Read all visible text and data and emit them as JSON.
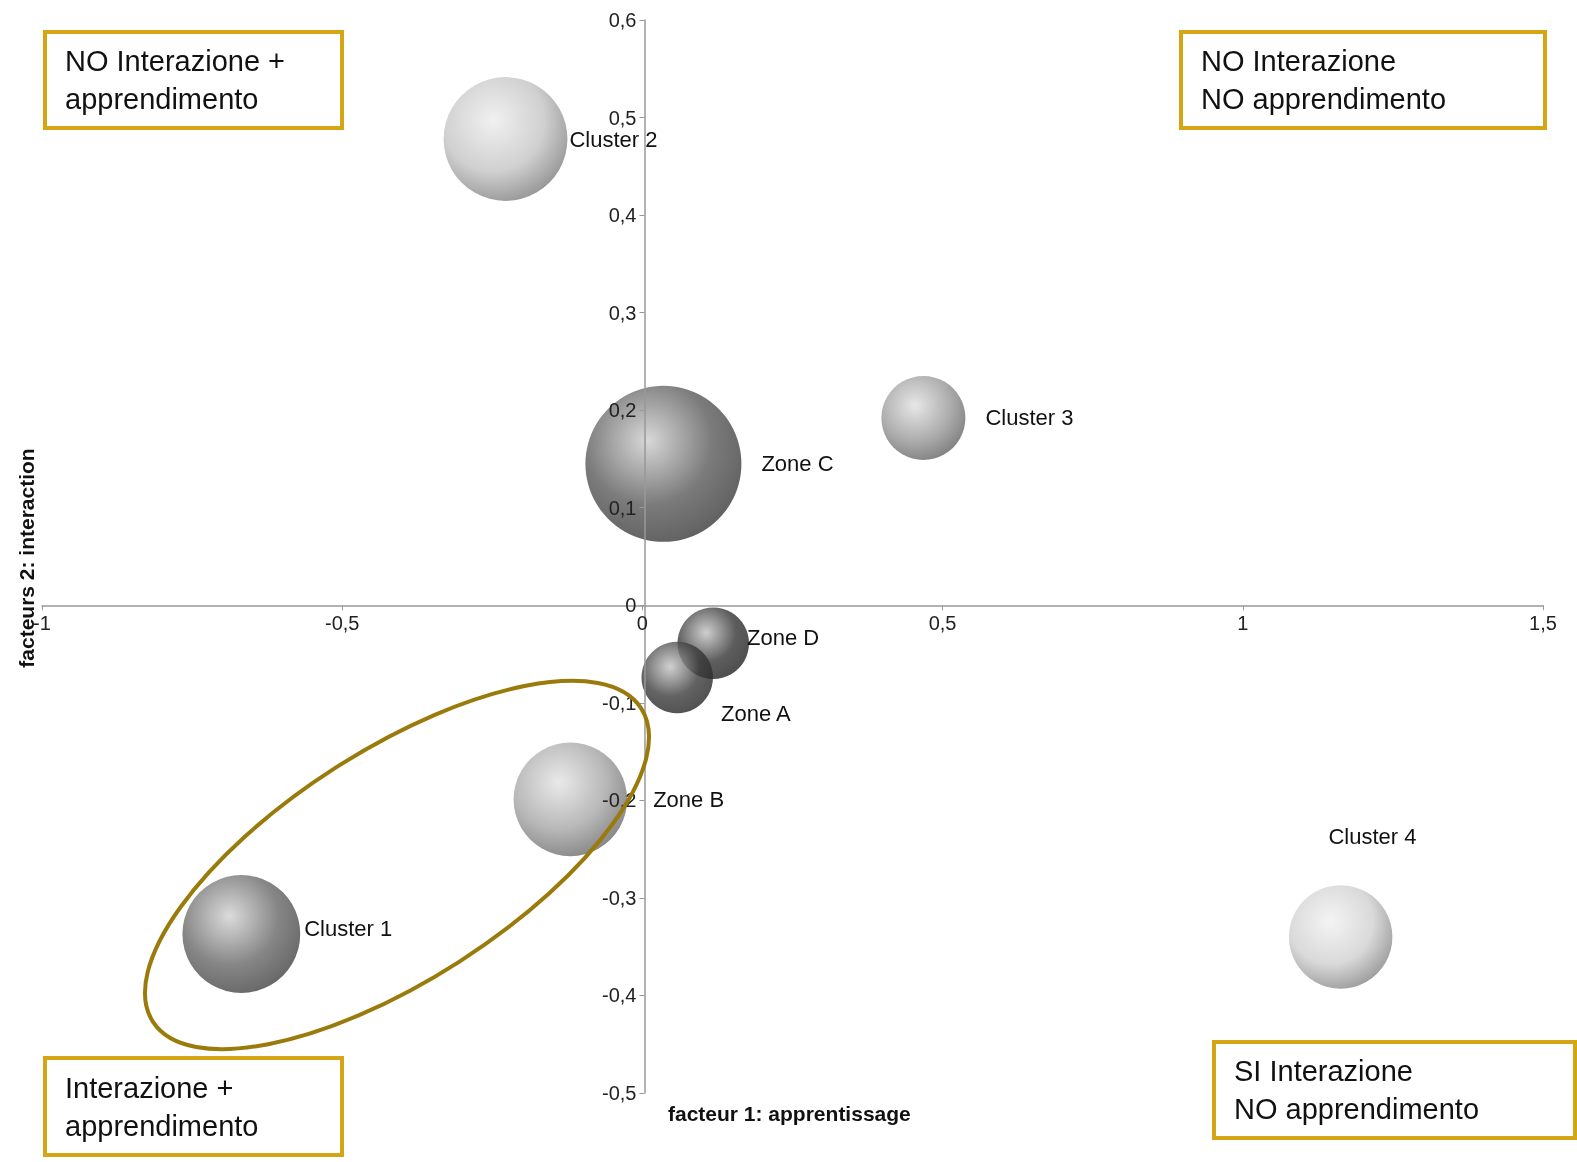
{
  "chart_data": {
    "type": "bubble",
    "xlabel": "facteur 1: apprentissage",
    "ylabel": "facteurs 2: interaction",
    "x": [
      -0.228,
      0.035,
      0.468,
      0.118,
      0.058,
      -0.12,
      -0.668,
      1.163
    ],
    "values": [
      0.478,
      0.145,
      0.192,
      -0.039,
      -0.074,
      -0.199,
      -0.337,
      -0.34
    ],
    "sizes": [
      0.63,
      1,
      0.29,
      0.21,
      0.21,
      0.53,
      0.57,
      0.44
    ],
    "colors": [
      "#c4c4c4",
      "#5a5a5a",
      "#9a9a9a",
      "#353535",
      "#3c3c3c",
      "#a6a6a6",
      "#686868",
      "#d0d0d0"
    ],
    "xlim": [
      -1,
      1.5
    ],
    "ylim": [
      -0.5,
      0.6
    ],
    "xticks": [
      -1,
      {
        "value": -0.5,
        "label": "-0,5"
      },
      0,
      {
        "value": 0.5,
        "label": "0,5"
      },
      1,
      {
        "value": 1.5,
        "label": "1,5"
      }
    ],
    "yticks": [
      {
        "value": -0.5,
        "label": "-0,5"
      },
      {
        "value": -0.4,
        "label": "-0,4"
      },
      {
        "value": -0.3,
        "label": "-0,3"
      },
      {
        "value": -0.2,
        "label": "-0,2"
      },
      {
        "value": -0.1,
        "label": "-0,1"
      },
      0,
      {
        "value": 0.1,
        "label": "0,1"
      },
      {
        "value": 0.2,
        "label": "0,2"
      },
      {
        "value": 0.3,
        "label": "0,3"
      },
      {
        "value": 0.4,
        "label": "0,4"
      },
      {
        "value": 0.5,
        "label": "0,5"
      },
      {
        "value": 0.6,
        "label": "0,6"
      }
    ],
    "annotations": [
      "Cluster 2",
      "Zone C",
      "Cluster 3",
      "Zone D",
      "Zone A",
      "Zone B",
      "Cluster 1",
      "Cluster 4",
      "NO Interazione +\napprendimento",
      "NO Interazione\nNO apprendimento",
      "Interazione +\napprendimento",
      "SI Interazione\nNO apprendimento"
    ]
  }
}
